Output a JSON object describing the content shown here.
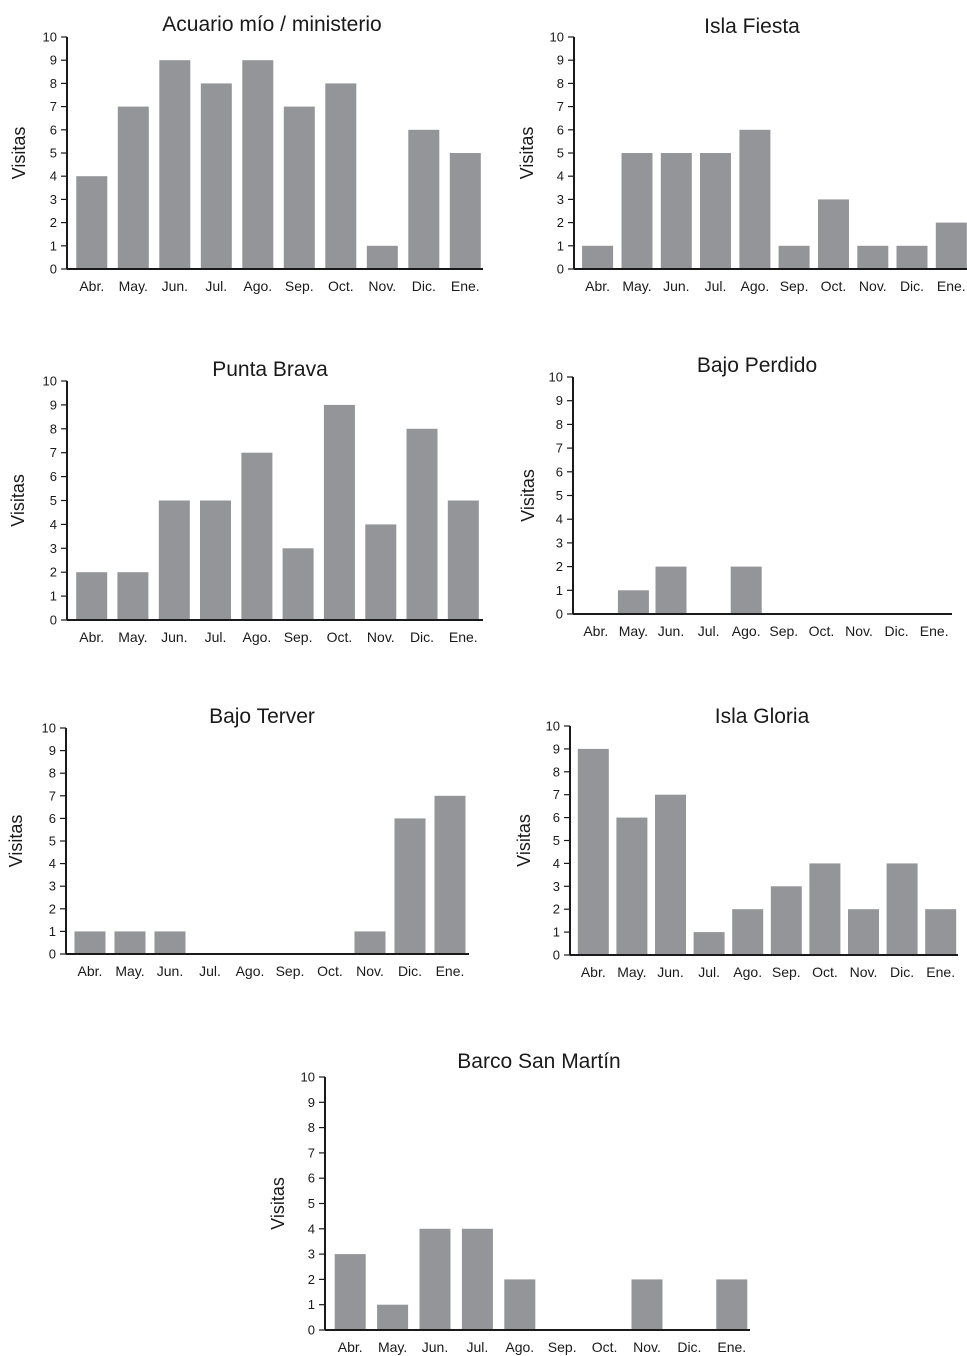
{
  "chart_data": [
    {
      "type": "bar",
      "title": "Acuario mío / ministerio",
      "ylabel": "Visitas",
      "xlabel": "",
      "categories": [
        "Abr.",
        "May.",
        "Jun.",
        "Jul.",
        "Ago.",
        "Sep.",
        "Oct.",
        "Nov.",
        "Dic.",
        "Ene."
      ],
      "yticks": [
        "0",
        "1",
        "2",
        "3",
        "4",
        "5",
        "6",
        "7",
        "8",
        "9",
        "10"
      ],
      "values": [
        4,
        7,
        9,
        8,
        9,
        7,
        8,
        1,
        6,
        5
      ],
      "ylim": [
        0,
        10
      ],
      "color": "#939598"
    },
    {
      "type": "bar",
      "title": "Isla Fiesta",
      "ylabel": "Visitas",
      "xlabel": "",
      "categories": [
        "Abr.",
        "May.",
        "Jun.",
        "Jul.",
        "Ago.",
        "Sep.",
        "Oct.",
        "Nov.",
        "Dic.",
        "Ene."
      ],
      "yticks": [
        "0",
        "1",
        "2",
        "3",
        "4",
        "5",
        "6",
        "7",
        "8",
        "9",
        "10"
      ],
      "values": [
        1,
        5,
        5,
        5,
        6,
        1,
        3,
        1,
        1,
        2
      ],
      "ylim": [
        0,
        10
      ],
      "color": "#939598"
    },
    {
      "type": "bar",
      "title": "Punta Brava",
      "ylabel": "Visitas",
      "xlabel": "",
      "categories": [
        "Abr.",
        "May.",
        "Jun.",
        "Jul.",
        "Ago.",
        "Sep.",
        "Oct.",
        "Nov.",
        "Dic.",
        "Ene."
      ],
      "yticks": [
        "0",
        "1",
        "2",
        "3",
        "4",
        "5",
        "6",
        "7",
        "8",
        "9",
        "10"
      ],
      "values": [
        2,
        2,
        5,
        5,
        7,
        3,
        9,
        4,
        8,
        5
      ],
      "ylim": [
        0,
        10
      ],
      "color": "#939598"
    },
    {
      "type": "bar",
      "title": "Bajo Perdido",
      "ylabel": "Visitas",
      "xlabel": "",
      "categories": [
        "Abr.",
        "May.",
        "Jun.",
        "Jul.",
        "Ago.",
        "Sep.",
        "Oct.",
        "Nov.",
        "Dic.",
        "Ene."
      ],
      "yticks": [
        "0",
        "1",
        "2",
        "3",
        "4",
        "5",
        "6",
        "7",
        "8",
        "9",
        "10"
      ],
      "values": [
        0,
        1,
        2,
        0,
        2,
        0,
        0,
        0,
        0,
        0
      ],
      "ylim": [
        0,
        10
      ],
      "color": "#939598"
    },
    {
      "type": "bar",
      "title": "Bajo Terver",
      "ylabel": "Visitas",
      "xlabel": "",
      "categories": [
        "Abr.",
        "May.",
        "Jun.",
        "Jul.",
        "Ago.",
        "Sep.",
        "Oct.",
        "Nov.",
        "Dic.",
        "Ene."
      ],
      "yticks": [
        "0",
        "1",
        "2",
        "3",
        "4",
        "5",
        "6",
        "7",
        "8",
        "9",
        "10"
      ],
      "values": [
        1,
        1,
        1,
        0,
        0,
        0,
        0,
        1,
        6,
        7
      ],
      "ylim": [
        0,
        10
      ],
      "color": "#939598"
    },
    {
      "type": "bar",
      "title": "Isla Gloria",
      "ylabel": "Visitas",
      "xlabel": "",
      "categories": [
        "Abr.",
        "May.",
        "Jun.",
        "Jul.",
        "Ago.",
        "Sep.",
        "Oct.",
        "Nov.",
        "Dic.",
        "Ene."
      ],
      "yticks": [
        "0",
        "1",
        "2",
        "3",
        "4",
        "5",
        "6",
        "7",
        "8",
        "9",
        "10"
      ],
      "values": [
        9,
        6,
        7,
        1,
        2,
        3,
        4,
        2,
        4,
        2
      ],
      "ylim": [
        0,
        10
      ],
      "color": "#939598"
    },
    {
      "type": "bar",
      "title": "Barco San Martín",
      "ylabel": "Visitas",
      "xlabel": "",
      "categories": [
        "Abr.",
        "May.",
        "Jun.",
        "Jul.",
        "Ago.",
        "Sep.",
        "Oct.",
        "Nov.",
        "Dic.",
        "Ene."
      ],
      "yticks": [
        "0",
        "1",
        "2",
        "3",
        "4",
        "5",
        "6",
        "7",
        "8",
        "9",
        "10"
      ],
      "values": [
        3,
        1,
        4,
        4,
        2,
        0,
        0,
        2,
        0,
        2
      ],
      "ylim": [
        0,
        10
      ],
      "color": "#939598"
    }
  ]
}
